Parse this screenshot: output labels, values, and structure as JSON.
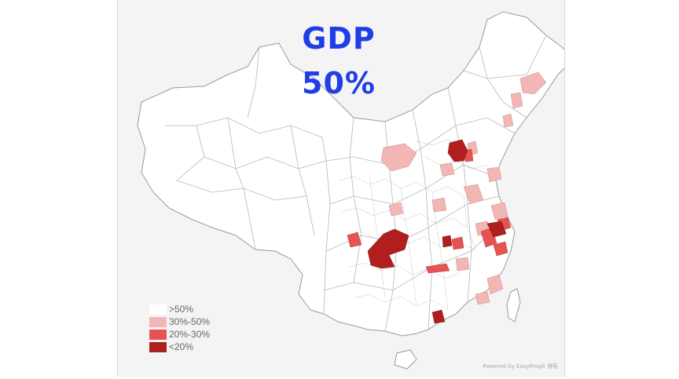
{
  "title": {
    "line1": "GDP",
    "line2": "50%"
  },
  "legend": [
    {
      "label": ">50%",
      "color": "#ffffff"
    },
    {
      "label": "30%-50%",
      "color": "#f2b7b5"
    },
    {
      "label": "20%-30%",
      "color": "#e65352"
    },
    {
      "label": "<20%",
      "color": "#b01e1e"
    }
  ],
  "footer": "Powered by EasyProgit 博客"
}
